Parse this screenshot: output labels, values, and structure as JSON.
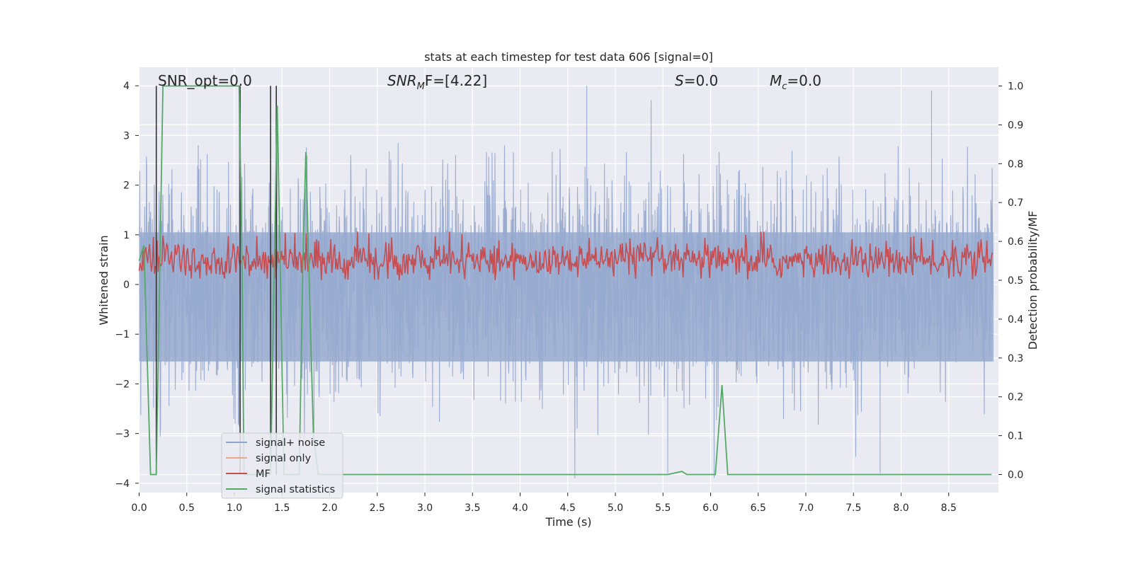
{
  "chart_data": {
    "type": "line",
    "title": "stats at each timestep for test data 606 [signal=0]",
    "xlabel": "Time (s)",
    "ylabel_left": "Whitened strain",
    "ylabel_right": "Detection probability/MF",
    "xlim": [
      0.0,
      9.0
    ],
    "ylim_left": [
      -4.3,
      4.4
    ],
    "ylim_right": [
      -0.045,
      1.045
    ],
    "grid": true,
    "legend_position": "lower-left",
    "x_ticks": [
      0.0,
      0.5,
      1.0,
      1.5,
      2.0,
      2.5,
      3.0,
      3.5,
      4.0,
      4.5,
      5.0,
      5.5,
      6.0,
      6.5,
      7.0,
      7.5,
      8.0,
      8.5
    ],
    "x_tick_labels": [
      "0.0",
      "0.5",
      "1.0",
      "1.5",
      "2.0",
      "2.5",
      "3.0",
      "3.5",
      "4.0",
      "4.5",
      "5.0",
      "5.5",
      "6.0",
      "6.5",
      "7.0",
      "7.5",
      "8.0",
      "8.5"
    ],
    "y_ticks_left": [
      -4,
      -3,
      -2,
      -1,
      0,
      1,
      2,
      3,
      4
    ],
    "y_tick_labels_left": [
      "−4",
      "−3",
      "−2",
      "−1",
      "0",
      "1",
      "2",
      "3",
      "4"
    ],
    "y_ticks_right": [
      0.0,
      0.1,
      0.2,
      0.3,
      0.4,
      0.5,
      0.6,
      0.7,
      0.8,
      0.9,
      1.0
    ],
    "y_tick_labels_right": [
      "0.0",
      "0.1",
      "0.2",
      "0.3",
      "0.4",
      "0.5",
      "0.6",
      "0.7",
      "0.8",
      "0.9",
      "1.0"
    ],
    "annotations": {
      "snr_opt": "SNR_opt=0.0",
      "snr_mf_main": "SNR",
      "snr_mf_sub": "M",
      "snr_mf_rest": "F=[4.22]",
      "s_main": "S",
      "s_rest": "=0.0",
      "mc_main": "M",
      "mc_sub": "c",
      "mc_rest": "=0.0"
    },
    "legend": [
      {
        "label": "signal+ noise",
        "color": "#8fa4cc"
      },
      {
        "label": "signal only",
        "color": "#e8a68a"
      },
      {
        "label": "MF",
        "color": "#c44e52"
      },
      {
        "label": "signal statistics",
        "color": "#55a868"
      }
    ],
    "series": [
      {
        "name": "signal+ noise",
        "axis": "left",
        "color": "#97a9cf",
        "description_values": "noise band",
        "positive_envelope_typical": 2.0,
        "negative_envelope_typical": -2.2,
        "notable_peaks": [
          [
            1.05,
            3.85
          ],
          [
            1.45,
            3.6
          ],
          [
            4.7,
            4.0
          ],
          [
            5.55,
            -3.8
          ],
          [
            7.78,
            -3.8
          ],
          [
            8.32,
            3.9
          ]
        ]
      },
      {
        "name": "MF",
        "axis": "right",
        "color": "#c44e52",
        "baseline_range": [
          0.5,
          0.62
        ]
      },
      {
        "name": "signal statistics",
        "axis": "right",
        "color": "#55a868",
        "x": [
          0.0,
          0.05,
          0.12,
          0.18,
          0.25,
          0.3,
          1.0,
          1.05,
          1.08,
          1.1,
          1.3,
          1.38,
          1.42,
          1.45,
          1.48,
          1.52,
          1.68,
          1.72,
          1.75,
          1.78,
          1.83,
          1.88,
          5.55,
          5.7,
          5.75,
          6.05,
          6.12,
          6.18,
          8.95
        ],
        "y": [
          0.55,
          0.59,
          0.0,
          0.0,
          1.0,
          1.0,
          1.0,
          1.0,
          0.55,
          0.0,
          0.0,
          0.0,
          0.55,
          0.95,
          0.55,
          0.0,
          0.0,
          0.55,
          0.83,
          0.55,
          0.1,
          0.0,
          0.0,
          0.008,
          0.0,
          0.0,
          0.23,
          0.0,
          0.0
        ]
      },
      {
        "name": "vertical markers",
        "axis": "left",
        "color": "#333333",
        "x": [
          0.18,
          1.06,
          1.38,
          1.44
        ]
      }
    ]
  }
}
